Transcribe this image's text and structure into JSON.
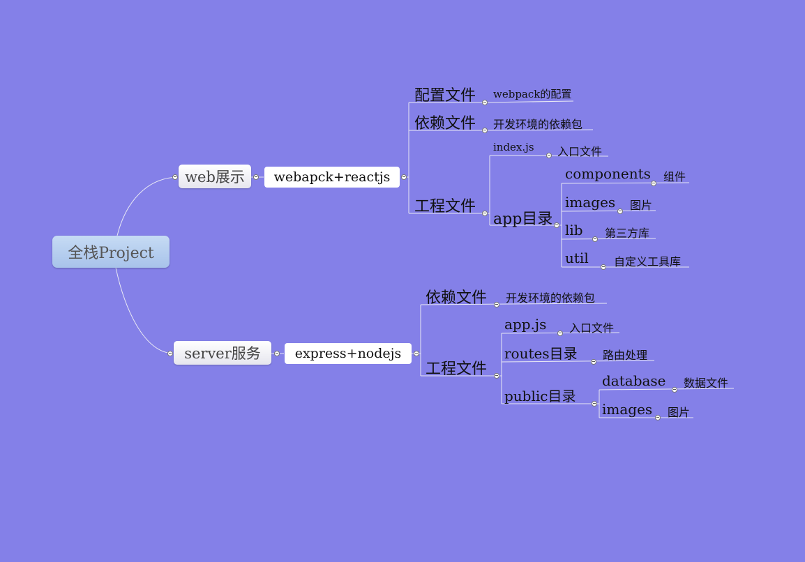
{
  "root": "全栈Project",
  "web": {
    "label": "web展示",
    "stack": "webapck+reactjs",
    "config": {
      "label": "配置文件",
      "note": "webpack的配置"
    },
    "deps": {
      "label": "依赖文件",
      "note": "开发环境的依赖包"
    },
    "project": {
      "label": "工程文件",
      "index": {
        "label": "index.js",
        "note": "入口文件"
      },
      "app": {
        "label": "app目录",
        "components": {
          "label": "components",
          "note": "组件"
        },
        "images": {
          "label": "images",
          "note": "图片"
        },
        "lib": {
          "label": "lib",
          "note": "第三方库"
        },
        "util": {
          "label": "util",
          "note": "自定义工具库"
        }
      }
    }
  },
  "server": {
    "label": "server服务",
    "stack": "express+nodejs",
    "deps": {
      "label": "依赖文件",
      "note": "开发环境的依赖包"
    },
    "project": {
      "label": "工程文件",
      "app": {
        "label": "app.js",
        "note": "入口文件"
      },
      "routes": {
        "label": "routes目录",
        "note": "路由处理"
      },
      "public": {
        "label": "public目录",
        "database": {
          "label": "database",
          "note": "数据文件"
        },
        "images": {
          "label": "images",
          "note": "图片"
        }
      }
    }
  }
}
